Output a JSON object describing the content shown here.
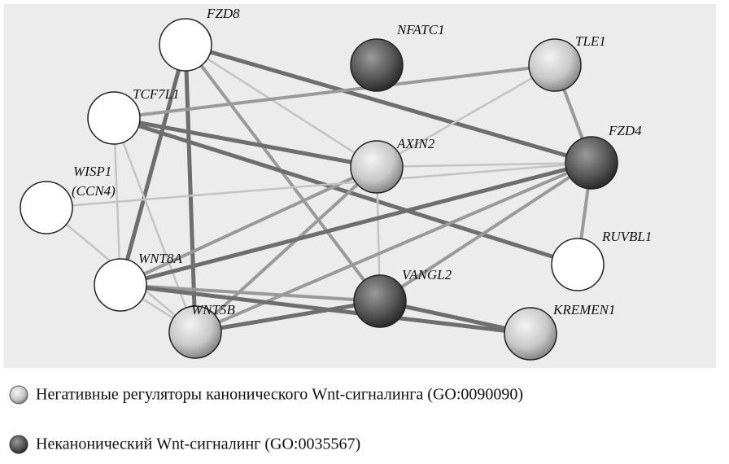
{
  "nodes": [
    {
      "label": "FZD8"
    },
    {
      "label": "NFATC1"
    },
    {
      "label": "TLE1"
    },
    {
      "label": "TCF7L1"
    },
    {
      "label": "AXIN2"
    },
    {
      "label": "FZD4"
    },
    {
      "label": "WISP1",
      "alias": "(CCN4)"
    },
    {
      "label": "RUVBL1"
    },
    {
      "label": "WNT8A"
    },
    {
      "label": "VANGL2"
    },
    {
      "label": "WNT5B"
    },
    {
      "label": "KREMEN1"
    }
  ],
  "legend": [
    {
      "text": "Негативные регуляторы канонического Wnt-сигналинга (GO:0090090)"
    },
    {
      "text": "Неканонический Wnt-сигналинг (GO:0035567)"
    }
  ]
}
